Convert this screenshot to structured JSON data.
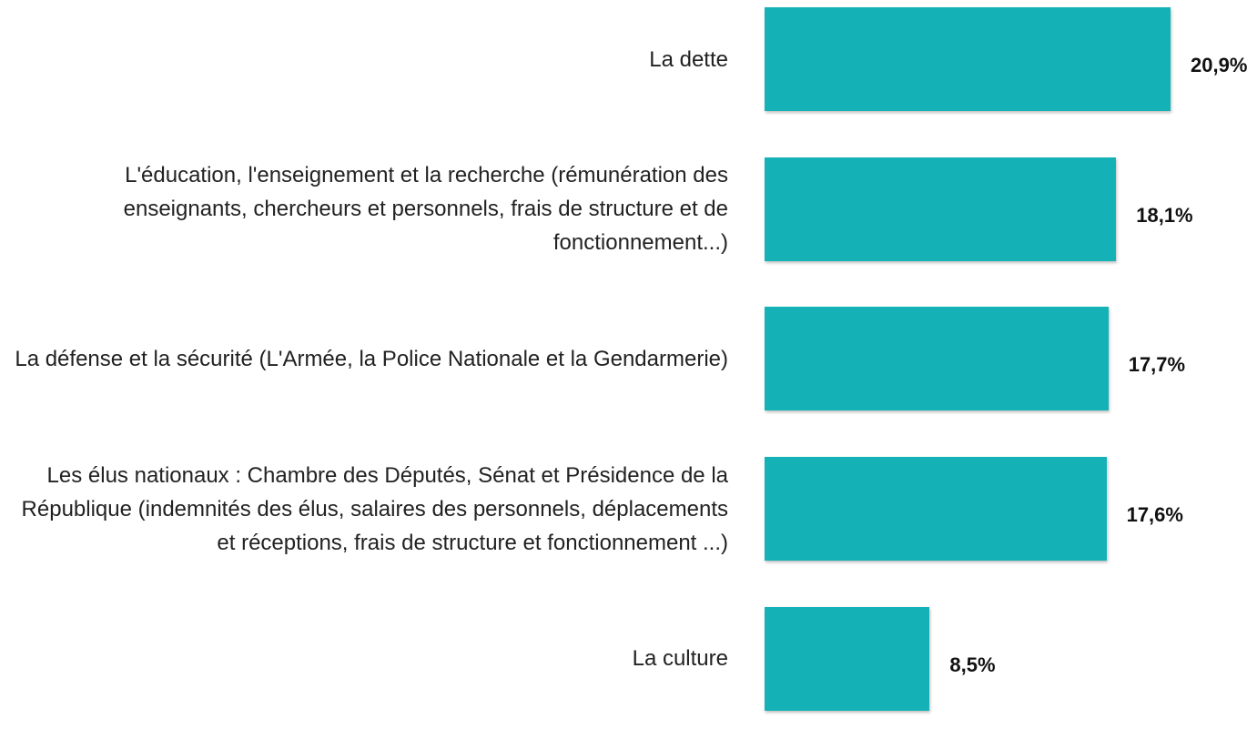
{
  "chart_data": {
    "type": "bar",
    "orientation": "horizontal",
    "categories": [
      "La dette",
      "L'éducation, l'enseignement et la recherche (rémunération des enseignants, chercheurs et personnels, frais de structure et de fonctionnement...)",
      "La défense et la sécurité (L'Armée, la Police Nationale et la Gendarmerie)",
      "Les élus nationaux : Chambre des Députés, Sénat et Présidence de la République (indemnités des élus, salaires des personnels, déplacements et réceptions, frais de structure et fonctionnement ...)",
      "La culture"
    ],
    "values": [
      20.9,
      18.1,
      17.7,
      17.6,
      8.5
    ],
    "value_labels": [
      "20,9%",
      "18,1%",
      "17,7%",
      "17,6%",
      "8,5%"
    ],
    "color": "#14b1b7"
  }
}
